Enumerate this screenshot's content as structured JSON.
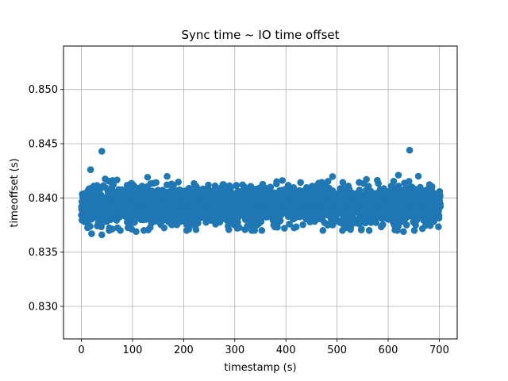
{
  "chart_data": {
    "type": "scatter",
    "title": "Sync time ~ IO time offset",
    "xlabel": "timestamp (s)",
    "ylabel": "timeoffset (s)",
    "xlim": [
      -35,
      735
    ],
    "ylim": [
      0.827,
      0.854
    ],
    "xticks": [
      0,
      100,
      200,
      300,
      400,
      500,
      600,
      700
    ],
    "xtick_labels": [
      "0",
      "100",
      "200",
      "300",
      "400",
      "500",
      "600",
      "700"
    ],
    "yticks": [
      0.83,
      0.835,
      0.84,
      0.845,
      0.85
    ],
    "ytick_labels": [
      "0.830",
      "0.835",
      "0.840",
      "0.845",
      "0.850"
    ],
    "grid": true,
    "marker_color": "#1f77b4",
    "series": [
      {
        "description_of_distribution": "dense band of points from x=0 to x=700, y mostly between 0.8375 and 0.8415, centered near 0.8393",
        "x_range": [
          0,
          702
        ],
        "y_center": 0.8393,
        "y_band": [
          0.837,
          0.842
        ],
        "outliers": [
          {
            "x": 40,
            "y": 0.8443
          },
          {
            "x": 642,
            "y": 0.8444
          },
          {
            "x": 18,
            "y": 0.8426
          },
          {
            "x": 620,
            "y": 0.8421
          },
          {
            "x": 40,
            "y": 0.8366
          },
          {
            "x": 20,
            "y": 0.8367
          },
          {
            "x": 107,
            "y": 0.8369
          },
          {
            "x": 305,
            "y": 0.8372
          },
          {
            "x": 210,
            "y": 0.8371
          },
          {
            "x": 630,
            "y": 0.8369
          }
        ]
      }
    ]
  }
}
